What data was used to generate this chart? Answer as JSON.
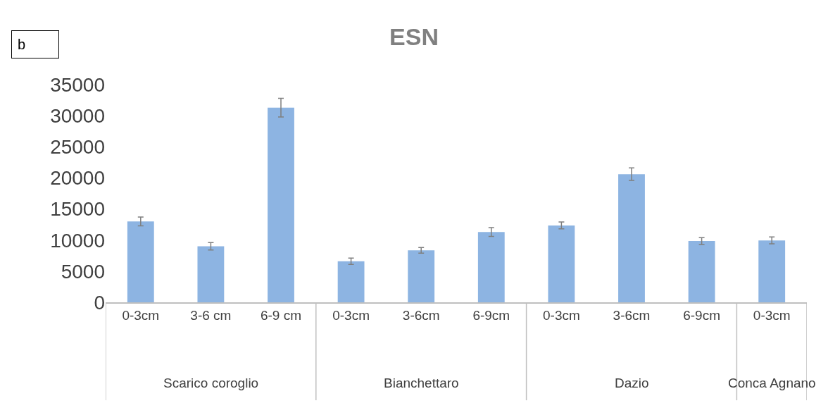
{
  "chart_data": {
    "type": "bar",
    "title": "ESN",
    "categories": [
      "0-3cm",
      "3-6 cm",
      "6-9 cm",
      "0-3cm",
      "3-6cm",
      "6-9cm",
      "0-3cm",
      "3-6cm",
      "6-9cm",
      "0-3cm"
    ],
    "values": [
      13000,
      9000,
      31300,
      6600,
      8350,
      11300,
      12350,
      20600,
      9850,
      9950
    ],
    "errors": [
      700,
      600,
      1500,
      500,
      450,
      700,
      550,
      1000,
      550,
      550
    ],
    "color": "#8db4e2",
    "ylim": [
      0,
      35000
    ],
    "yticks": [
      0,
      5000,
      10000,
      15000,
      20000,
      25000,
      30000,
      35000
    ],
    "grid": false,
    "legend": false,
    "annotations": [
      "b",
      "Scarico coroglio",
      "Bianchettaro",
      "Dazio",
      "Conca Agnano"
    ]
  }
}
